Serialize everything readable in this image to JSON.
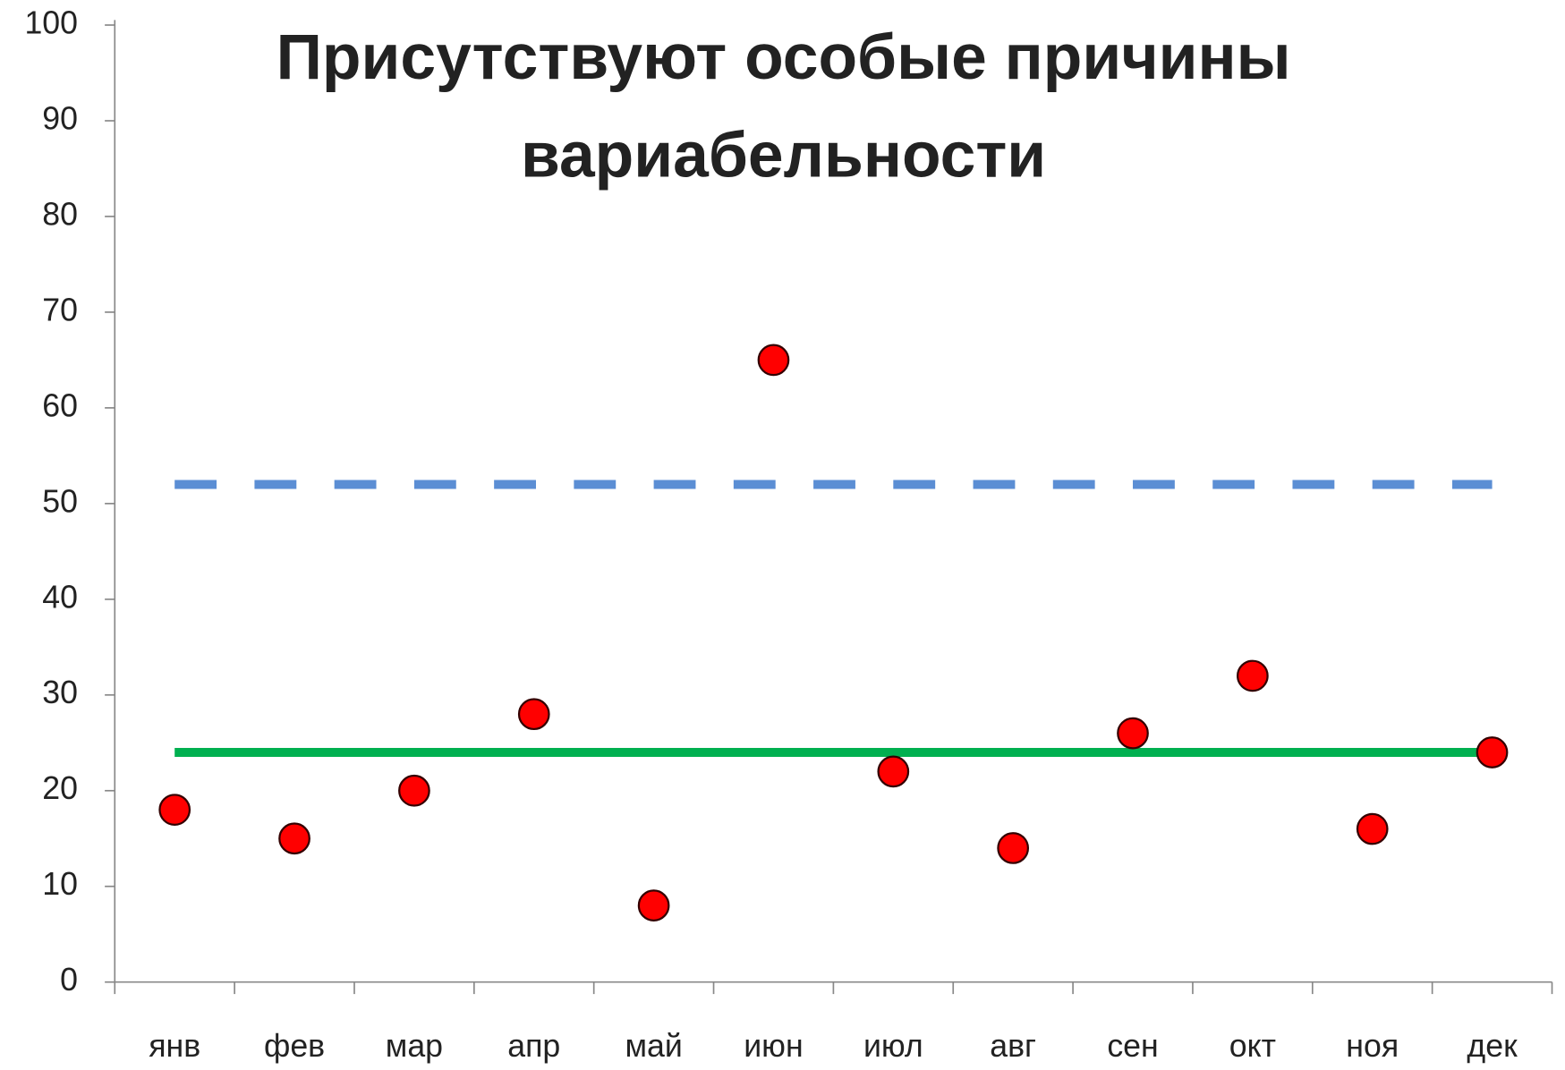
{
  "chart_data": {
    "type": "line",
    "title": [
      "Присутствуют особые причины",
      "вариабельности"
    ],
    "categories": [
      "янв",
      "фев",
      "мар",
      "апр",
      "май",
      "июн",
      "июл",
      "авг",
      "сен",
      "окт",
      "ноя",
      "дек"
    ],
    "series": [
      {
        "color": "#5b8ed4",
        "style": "dashed",
        "values": [
          52,
          52,
          52,
          52,
          52,
          52,
          52,
          52,
          52,
          52,
          52,
          52
        ]
      },
      {
        "color": "#00b050",
        "style": "solid",
        "values": [
          24,
          24,
          24,
          24,
          24,
          24,
          24,
          24,
          24,
          24,
          24,
          24
        ]
      },
      {
        "color": "#ff0000",
        "style": "markers",
        "values": [
          18,
          15,
          20,
          28,
          8,
          65,
          22,
          14,
          26,
          32,
          16,
          24
        ]
      }
    ],
    "ylim": [
      0,
      100
    ],
    "yticks": [
      0,
      10,
      20,
      30,
      40,
      50,
      60,
      70,
      80,
      90,
      100
    ],
    "grid": false
  }
}
